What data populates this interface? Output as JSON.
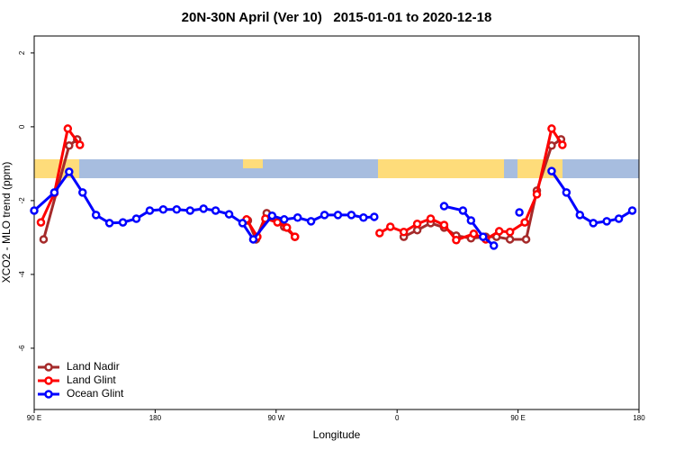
{
  "chart_data": {
    "type": "line",
    "title": "20N-30N April (Ver 10)   2015-01-01 to 2020-12-18",
    "x_label": "Longitude",
    "y_label": "XCO2 - MLO trend (ppm)",
    "xlim": [
      90,
      540
    ],
    "xticks": [
      {
        "value": 90,
        "label": "90 E"
      },
      {
        "value": 180,
        "label": "180"
      },
      {
        "value": 270,
        "label": "90 W"
      },
      {
        "value": 360,
        "label": "0"
      },
      {
        "value": 450,
        "label": "90 E"
      },
      {
        "value": 540,
        "label": "180"
      }
    ],
    "ylim": [
      -7.66,
      2.46
    ],
    "yticks": [
      2,
      0,
      -2,
      -4,
      -6
    ],
    "legend": "bottom-left",
    "series": [
      {
        "name": "Land Nadir",
        "color": "#a52a2a",
        "x": [
          97,
          116,
          122,
          null,
          249,
          255,
          263,
          276,
          284,
          null,
          365,
          375,
          385,
          395,
          404,
          415,
          426,
          434,
          444,
          456,
          464,
          475,
          482
        ],
        "values": [
          -3.05,
          -0.51,
          -0.34,
          null,
          -2.54,
          -3.05,
          -2.34,
          -2.71,
          -2.98,
          null,
          -2.98,
          -2.8,
          -2.61,
          -2.73,
          -2.95,
          -3.02,
          -2.98,
          -2.98,
          -3.05,
          -3.05,
          -1.73,
          -0.51,
          -0.34
        ]
      },
      {
        "name": "Land Glint",
        "color": "#ff0000",
        "x": [
          95,
          105,
          115,
          124,
          null,
          248,
          256,
          262,
          271,
          278,
          284,
          null,
          347,
          355,
          365,
          375,
          385,
          395,
          404,
          417,
          426,
          436,
          444,
          455,
          464,
          475,
          483
        ],
        "values": [
          -2.59,
          -1.8,
          -0.05,
          -0.49,
          null,
          -2.51,
          -2.98,
          -2.49,
          -2.59,
          -2.73,
          -2.98,
          null,
          -2.88,
          -2.71,
          -2.85,
          -2.63,
          -2.49,
          -2.66,
          -3.07,
          -2.9,
          -3.05,
          -2.83,
          -2.85,
          -2.59,
          -1.83,
          -0.05,
          -0.49
        ]
      },
      {
        "name": "Ocean Glint",
        "color": "#0000ff",
        "x": [
          90,
          105,
          116,
          126,
          136,
          146,
          156,
          166,
          176,
          186,
          196,
          206,
          216,
          225,
          235,
          245,
          253,
          267,
          276,
          286,
          296,
          306,
          316,
          326,
          335,
          343,
          null,
          395,
          409,
          415,
          424,
          432,
          null,
          451,
          null,
          475,
          486,
          496,
          506,
          516,
          525,
          535
        ],
        "values": [
          -2.27,
          -1.78,
          -1.22,
          -1.78,
          -2.39,
          -2.61,
          -2.59,
          -2.49,
          -2.27,
          -2.24,
          -2.24,
          -2.27,
          -2.22,
          -2.27,
          -2.37,
          -2.61,
          -3.05,
          -2.41,
          -2.51,
          -2.46,
          -2.56,
          -2.39,
          -2.39,
          -2.39,
          -2.46,
          -2.44,
          null,
          -2.15,
          -2.27,
          -2.54,
          -2.98,
          -3.22,
          null,
          -2.32,
          null,
          -1.2,
          -1.78,
          -2.39,
          -2.61,
          -2.56,
          -2.49,
          -2.27
        ]
      }
    ]
  }
}
